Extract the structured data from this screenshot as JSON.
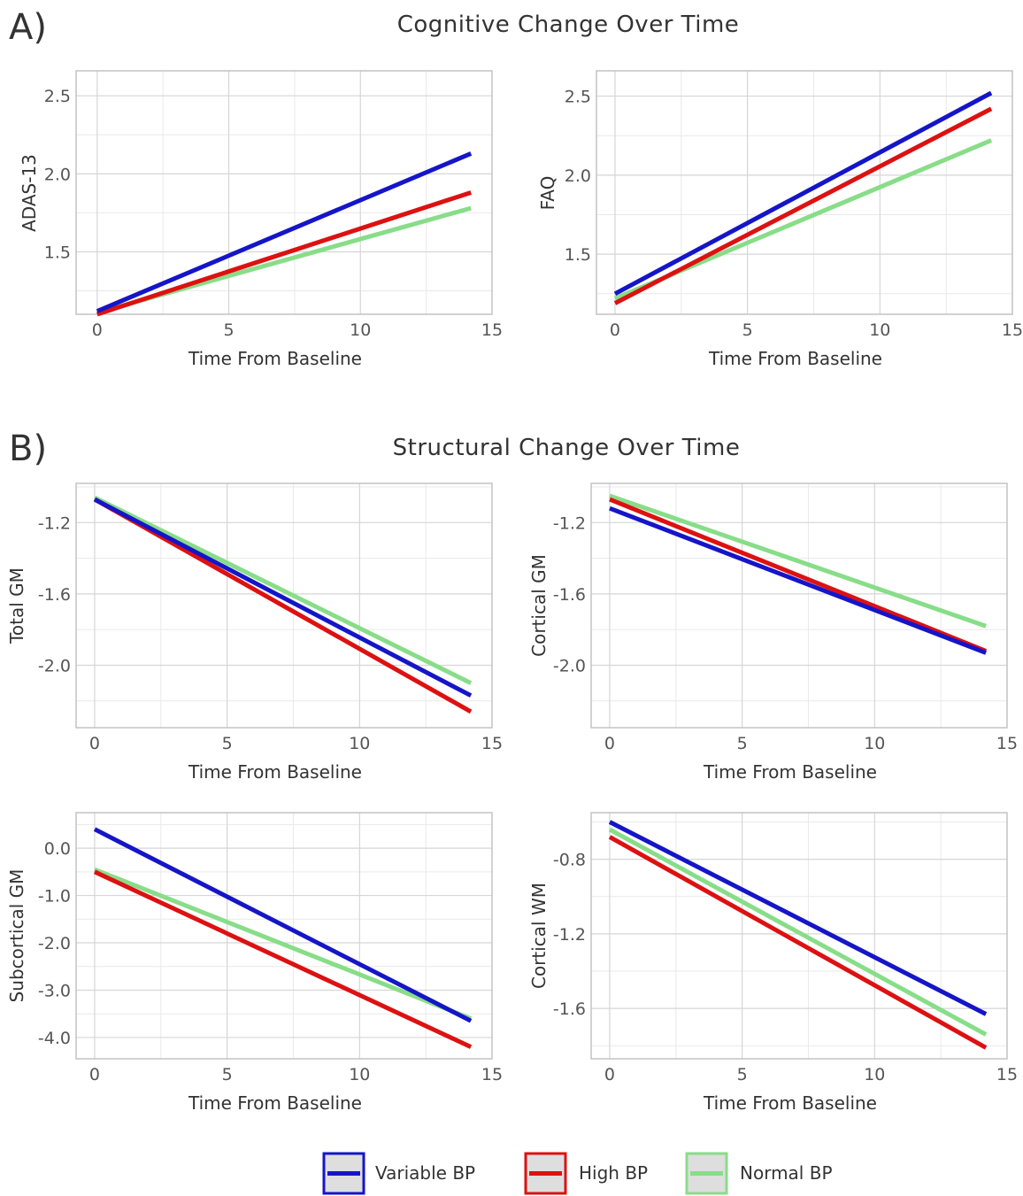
{
  "sections": [
    {
      "letter": "A)",
      "title": "Cognitive Change Over Time"
    },
    {
      "letter": "B)",
      "title": "Structural Change Over Time"
    }
  ],
  "legend": [
    {
      "name": "Variable BP",
      "color": "#1515c8"
    },
    {
      "name": "High BP",
      "color": "#dd1111"
    },
    {
      "name": "Normal BP",
      "color": "#88dd88"
    }
  ],
  "chart_data": [
    {
      "type": "line",
      "xlabel": "Time From Baseline",
      "ylabel": "ADAS-13",
      "xlim": [
        -0.8,
        15
      ],
      "ylim": [
        1.1,
        2.66
      ],
      "xticks": [
        0,
        5,
        10,
        15
      ],
      "xtick_labels": [
        "0",
        "5",
        "10",
        "15"
      ],
      "yticks": [
        1.5,
        2.0,
        2.5
      ],
      "ytick_labels": [
        "1.5",
        "2.0",
        "2.5"
      ],
      "grid": true,
      "series": [
        {
          "name": "Variable BP",
          "x": [
            0,
            14.2
          ],
          "y": [
            1.12,
            2.13
          ]
        },
        {
          "name": "High BP",
          "x": [
            0,
            14.2
          ],
          "y": [
            1.1,
            1.88
          ]
        },
        {
          "name": "Normal BP",
          "x": [
            0,
            14.2
          ],
          "y": [
            1.11,
            1.78
          ]
        }
      ]
    },
    {
      "type": "line",
      "xlabel": "Time From Baseline",
      "ylabel": "FAQ",
      "xlim": [
        -0.7,
        15
      ],
      "ylim": [
        1.12,
        2.66
      ],
      "xticks": [
        0,
        5,
        10,
        15
      ],
      "xtick_labels": [
        "0",
        "5",
        "10",
        "15"
      ],
      "yticks": [
        1.5,
        2.0,
        2.5
      ],
      "ytick_labels": [
        "1.5",
        "2.0",
        "2.5"
      ],
      "grid": true,
      "series": [
        {
          "name": "Variable BP",
          "x": [
            0,
            14.2
          ],
          "y": [
            1.25,
            2.52
          ]
        },
        {
          "name": "High BP",
          "x": [
            0,
            14.2
          ],
          "y": [
            1.19,
            2.42
          ]
        },
        {
          "name": "Normal BP",
          "x": [
            0,
            14.2
          ],
          "y": [
            1.22,
            2.22
          ]
        }
      ]
    },
    {
      "type": "line",
      "xlabel": "Time From Baseline",
      "ylabel": "Total GM",
      "xlim": [
        -0.7,
        15
      ],
      "ylim": [
        -2.35,
        -0.98
      ],
      "xticks": [
        0,
        5,
        10,
        15
      ],
      "xtick_labels": [
        "0",
        "5",
        "10",
        "15"
      ],
      "yticks": [
        -2.0,
        -1.6,
        -1.2
      ],
      "ytick_labels": [
        "-2.0",
        "-1.6",
        "-1.2"
      ],
      "grid": true,
      "series": [
        {
          "name": "Variable BP",
          "x": [
            0,
            14.2
          ],
          "y": [
            -1.07,
            -2.17
          ]
        },
        {
          "name": "High BP",
          "x": [
            0,
            14.2
          ],
          "y": [
            -1.07,
            -2.26
          ]
        },
        {
          "name": "Normal BP",
          "x": [
            0,
            14.2
          ],
          "y": [
            -1.06,
            -2.1
          ]
        }
      ]
    },
    {
      "type": "line",
      "xlabel": "Time From Baseline",
      "ylabel": "Cortical GM",
      "xlim": [
        -0.7,
        15
      ],
      "ylim": [
        -2.35,
        -0.98
      ],
      "xticks": [
        0,
        5,
        10,
        15
      ],
      "xtick_labels": [
        "0",
        "5",
        "10",
        "15"
      ],
      "yticks": [
        -2.0,
        -1.6,
        -1.2
      ],
      "ytick_labels": [
        "-2.0",
        "-1.6",
        "-1.2"
      ],
      "grid": true,
      "series": [
        {
          "name": "Variable BP",
          "x": [
            0,
            14.2
          ],
          "y": [
            -1.12,
            -1.93
          ]
        },
        {
          "name": "High BP",
          "x": [
            0,
            14.2
          ],
          "y": [
            -1.07,
            -1.92
          ]
        },
        {
          "name": "Normal BP",
          "x": [
            0,
            14.2
          ],
          "y": [
            -1.05,
            -1.78
          ]
        }
      ]
    },
    {
      "type": "line",
      "xlabel": "Time From Baseline",
      "ylabel": "Subcortical GM",
      "xlim": [
        -0.7,
        15
      ],
      "ylim": [
        -4.45,
        0.75
      ],
      "xticks": [
        0,
        5,
        10,
        15
      ],
      "xtick_labels": [
        "0",
        "5",
        "10",
        "15"
      ],
      "yticks": [
        -4.0,
        -3.0,
        -2.0,
        -1.0,
        0.0
      ],
      "ytick_labels": [
        "-4.0",
        "-3.0",
        "-2.0",
        "-1.0",
        "0.0"
      ],
      "grid": true,
      "series": [
        {
          "name": "Variable BP",
          "x": [
            0,
            14.2
          ],
          "y": [
            0.4,
            -3.65
          ]
        },
        {
          "name": "High BP",
          "x": [
            0,
            14.2
          ],
          "y": [
            -0.5,
            -4.2
          ]
        },
        {
          "name": "Normal BP",
          "x": [
            0,
            14.2
          ],
          "y": [
            -0.45,
            -3.6
          ]
        }
      ]
    },
    {
      "type": "line",
      "xlabel": "Time From Baseline",
      "ylabel": "Cortical WM",
      "xlim": [
        -0.7,
        15
      ],
      "ylim": [
        -1.87,
        -0.55
      ],
      "xticks": [
        0,
        5,
        10,
        15
      ],
      "xtick_labels": [
        "0",
        "5",
        "10",
        "15"
      ],
      "yticks": [
        -1.6,
        -1.2,
        -0.8
      ],
      "ytick_labels": [
        "-1.6",
        "-1.2",
        "-0.8"
      ],
      "grid": true,
      "series": [
        {
          "name": "Variable BP",
          "x": [
            0,
            14.2
          ],
          "y": [
            -0.6,
            -1.63
          ]
        },
        {
          "name": "High BP",
          "x": [
            0,
            14.2
          ],
          "y": [
            -0.68,
            -1.81
          ]
        },
        {
          "name": "Normal BP",
          "x": [
            0,
            14.2
          ],
          "y": [
            -0.64,
            -1.74
          ]
        }
      ]
    }
  ]
}
